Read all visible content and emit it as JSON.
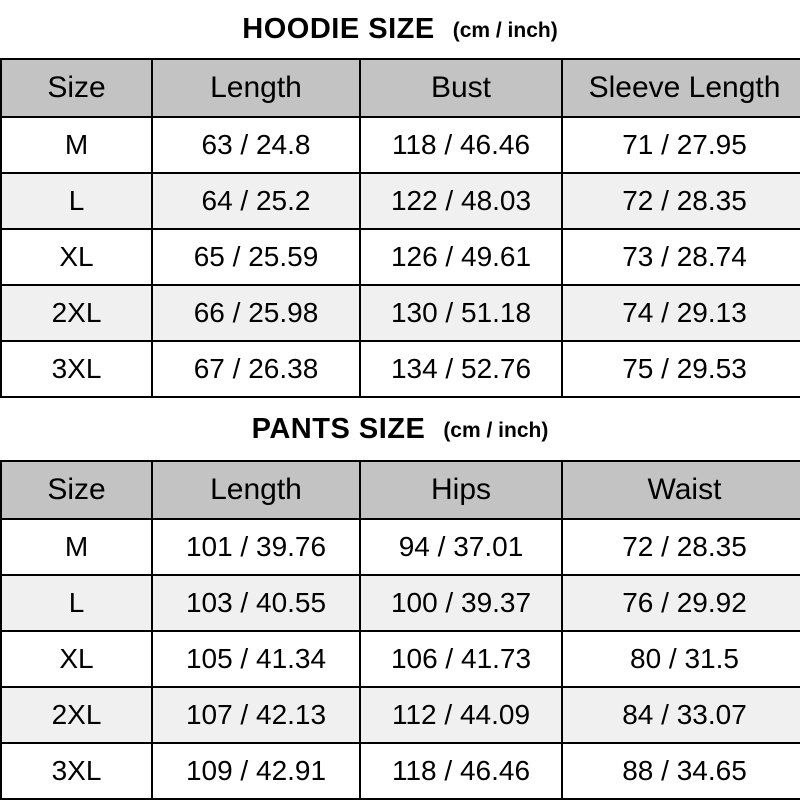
{
  "colors": {
    "header_bg": "#c3c3c3",
    "stripe_bg": "#f0f0f0",
    "border": "#000000",
    "text": "#000000"
  },
  "chart_data": [
    {
      "type": "table",
      "title": "HOODIE SIZE",
      "subtitle": "(cm / inch)",
      "columns": [
        "Size",
        "Length",
        "Bust",
        "Sleeve Length"
      ],
      "rows": [
        [
          "M",
          "63 / 24.8",
          "118 / 46.46",
          "71 / 27.95"
        ],
        [
          "L",
          "64 / 25.2",
          "122 / 48.03",
          "72 / 28.35"
        ],
        [
          "XL",
          "65 / 25.59",
          "126 / 49.61",
          "73 / 28.74"
        ],
        [
          "2XL",
          "66 / 25.98",
          "130 / 51.18",
          "74 / 29.13"
        ],
        [
          "3XL",
          "67 / 26.38",
          "134 / 52.76",
          "75 / 29.53"
        ]
      ]
    },
    {
      "type": "table",
      "title": "PANTS SIZE",
      "subtitle": "(cm / inch)",
      "columns": [
        "Size",
        "Length",
        "Hips",
        "Waist"
      ],
      "rows": [
        [
          "M",
          "101 / 39.76",
          "94 / 37.01",
          "72 / 28.35"
        ],
        [
          "L",
          "103 / 40.55",
          "100 / 39.37",
          "76 / 29.92"
        ],
        [
          "XL",
          "105 / 41.34",
          "106 / 41.73",
          "80 / 31.5"
        ],
        [
          "2XL",
          "107 / 42.13",
          "112 / 44.09",
          "84 / 33.07"
        ],
        [
          "3XL",
          "109 / 42.91",
          "118 / 46.46",
          "88 / 34.65"
        ]
      ]
    }
  ]
}
